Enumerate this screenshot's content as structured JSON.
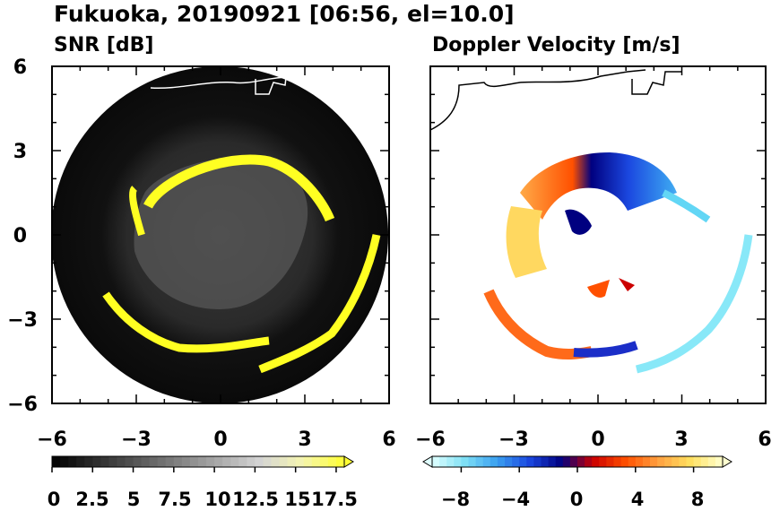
{
  "figure": {
    "title": "Fukuoka, 20190921 [06:56, el=10.0]"
  },
  "chart_data": [
    {
      "type": "heatmap",
      "title": "SNR [dB]",
      "xlim": [
        -6,
        6
      ],
      "ylim": [
        -6,
        6
      ],
      "xticks": [
        "−6",
        "−3",
        "0",
        "3",
        "6"
      ],
      "yticks": [
        "6",
        "3",
        "0",
        "−3",
        "−6"
      ],
      "colorbar": {
        "range": [
          0,
          18
        ],
        "ticks": [
          0,
          2.5,
          5,
          7.5,
          10,
          12.5,
          15,
          17.5
        ],
        "tick_labels": [
          "0",
          "2.5",
          "5",
          "7.5",
          "10",
          "12.5",
          "15",
          "17.5"
        ],
        "colors": [
          "#000000",
          "#2a2a2a",
          "#555555",
          "#808080",
          "#aaaaaa",
          "#d5d5d5",
          "#f5f5b0",
          "#ffff33"
        ],
        "extend": "max"
      },
      "features": {
        "echo_ring_radius_km": 4.3,
        "echo_color": "#ffff22",
        "coverage_radius_km": 5.9
      }
    },
    {
      "type": "heatmap",
      "title": "Doppler Velocity [m/s]",
      "xlim": [
        -6,
        6
      ],
      "ylim": [
        -6,
        6
      ],
      "xticks": [
        "−6",
        "−3",
        "0",
        "3",
        "6"
      ],
      "yticks": [
        "6",
        "3",
        "0",
        "−3",
        "−6"
      ],
      "colorbar": {
        "range": [
          -10,
          10
        ],
        "ticks": [
          -8,
          -4,
          0,
          4,
          8
        ],
        "tick_labels": [
          "−8",
          "−4",
          "0",
          "4",
          "8"
        ],
        "colors": [
          "#e0ffff",
          "#7fe0f5",
          "#3aa0f0",
          "#1b48e0",
          "#000080",
          "#cc0000",
          "#ff5000",
          "#ffa040",
          "#ffe060",
          "#ffffd0"
        ],
        "extend": "both"
      },
      "features": {
        "echo_ring_radius_km": 4.3,
        "coverage_radius_km": 5.9
      }
    }
  ]
}
